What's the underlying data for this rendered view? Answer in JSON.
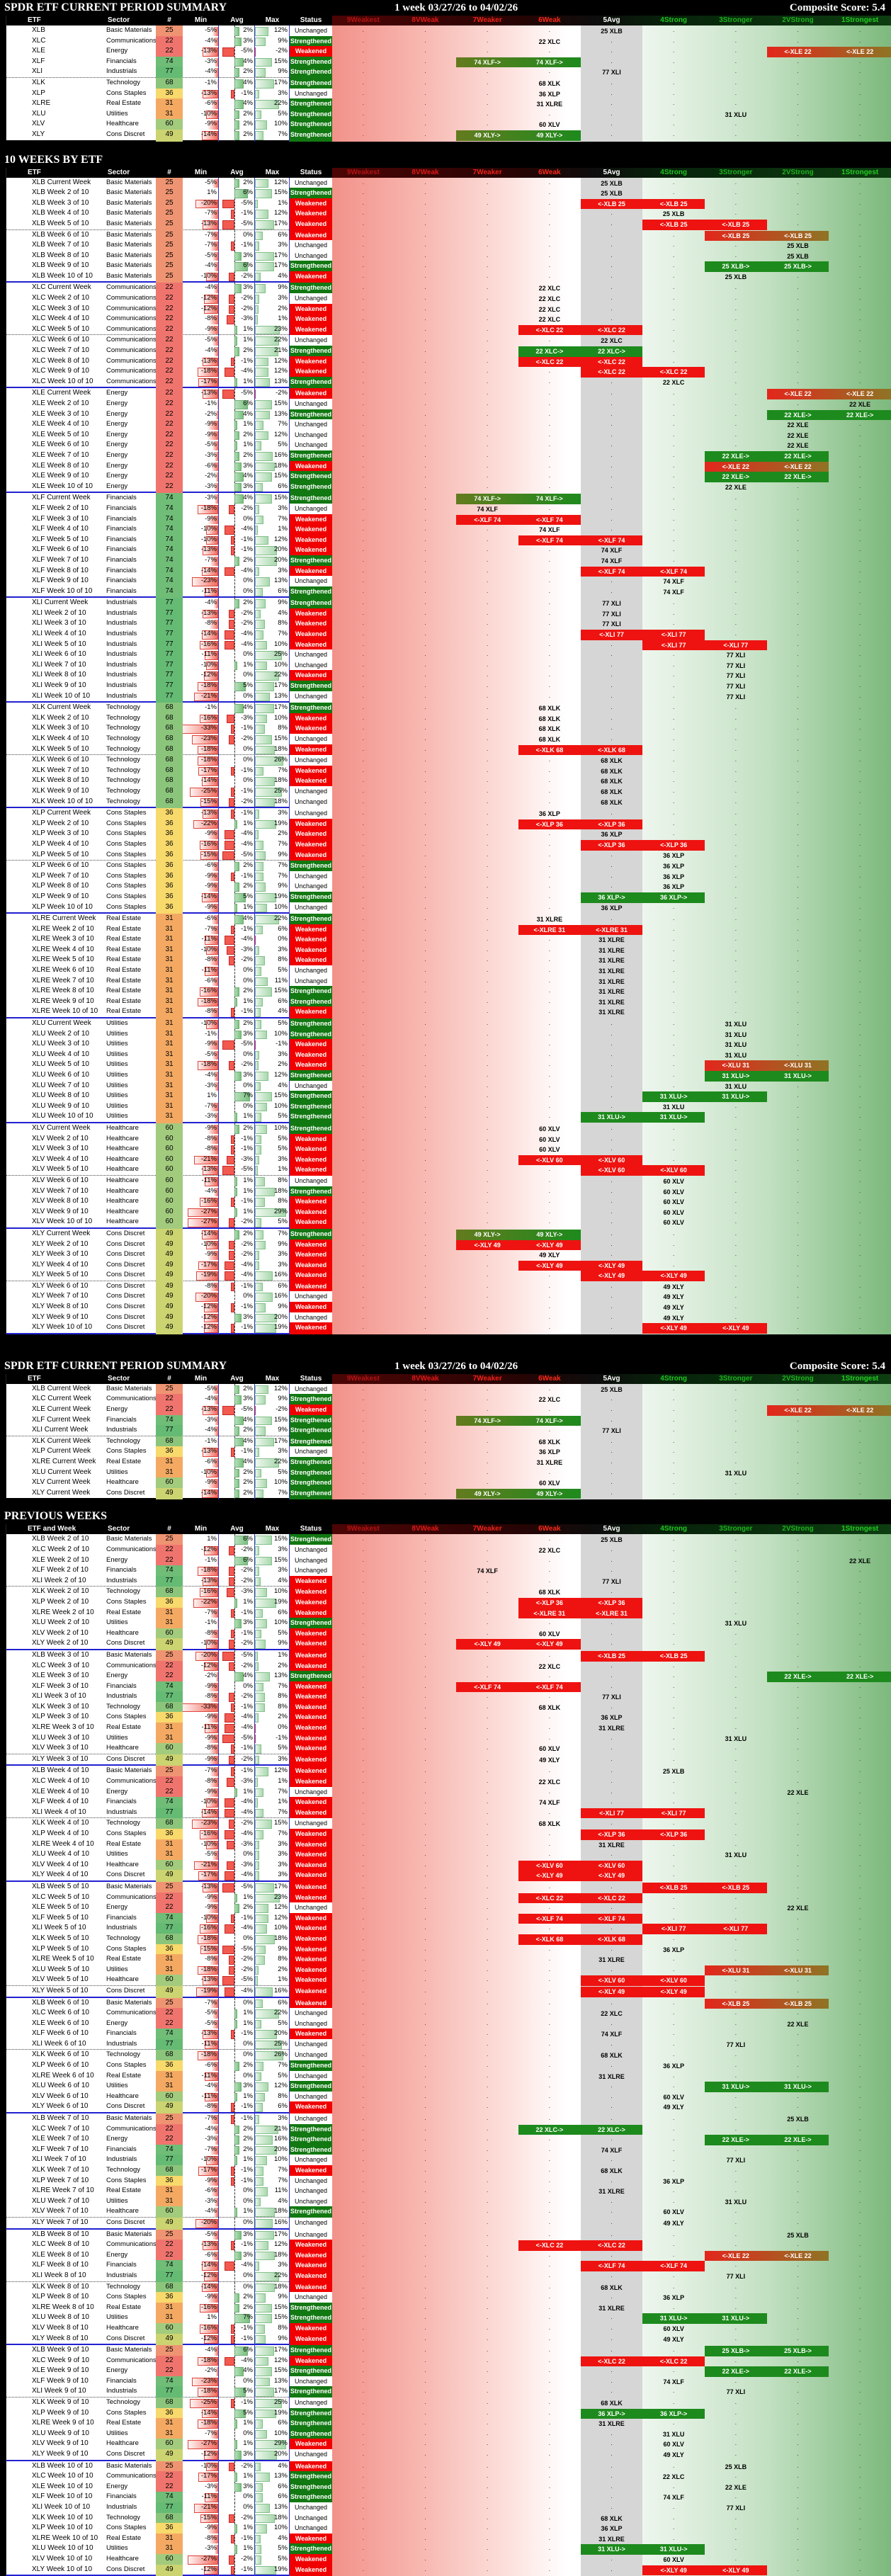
{
  "header": {
    "period": "1 week 03/27/26 to 04/02/26",
    "composite": "Composite Score: 5.4"
  },
  "sections": {
    "s1": {
      "title": "SPDR ETF CURRENT PERIOD SUMMARY",
      "first_col": "ETF"
    },
    "s2": {
      "title": "10 WEEKS BY ETF",
      "first_col": "ETF"
    },
    "s3": {
      "title": "SPDR ETF CURRENT PERIOD SUMMARY",
      "first_col": "ETF"
    },
    "s4": {
      "title": "PREVIOUS WEEKS",
      "first_col": "ETF and Week"
    }
  },
  "columns": {
    "left": [
      "ETF",
      "Sector",
      "#",
      "Min",
      "Avg",
      "Max",
      "Status"
    ],
    "rank": [
      "9Weakest",
      "8VWeak",
      "7Weaker",
      "6Weak",
      "5Avg",
      "4Strong",
      "3Stronger",
      "2VStrong",
      "1Strongest"
    ],
    "rank_header_colors": [
      "#b31414",
      "#e01818",
      "#f02218",
      "#ff2a1a",
      "#ffffff",
      "#20c520",
      "#1db31d",
      "#1db31d",
      "#22cc22"
    ]
  },
  "week_labels": [
    "Current Week",
    "Week 2 of 10",
    "Week 3 of 10",
    "Week 4 of 10",
    "Week 5 of 10",
    "Week 6 of 10",
    "Week 7 of 10",
    "Week 8 of 10",
    "Week 9 of 10",
    "Week 10 of 10"
  ],
  "status_names": {
    "U": "Unchanged",
    "S": "Strengthened",
    "W": "Weakened"
  },
  "status_colors": {
    "S": "#127812",
    "W": "#f00000",
    "U": "#ffffff"
  },
  "chip_colors": {
    "red": "#ee1310",
    "red_in_green_zone": "linear-gradient(90deg,#e3261c,#8f7424)",
    "green": "#1d8a1d",
    "green_in_red_zone": "linear-gradient(90deg,#637b1e,#1d8a1d)"
  },
  "etfs": [
    {
      "ticker": "XLB",
      "sector": "Basic Materials",
      "count": 25,
      "count_color": "#ef9472",
      "weeks": [
        [
          -5,
          2,
          12,
          "U",
          5,
          "p"
        ],
        [
          1,
          6,
          15,
          "S",
          5,
          "p"
        ],
        [
          -20,
          -5,
          1,
          "W",
          5,
          "l"
        ],
        [
          -7,
          -1,
          12,
          "W",
          6,
          "p"
        ],
        [
          -13,
          -5,
          17,
          "W",
          6,
          "l"
        ],
        [
          -7,
          0,
          6,
          "W",
          7,
          "l"
        ],
        [
          -7,
          -1,
          3,
          "U",
          8,
          "p"
        ],
        [
          -5,
          3,
          17,
          "U",
          8,
          "p"
        ],
        [
          -4,
          6,
          17,
          "S",
          7,
          "r"
        ],
        [
          -10,
          -2,
          4,
          "W",
          7,
          "p"
        ]
      ]
    },
    {
      "ticker": "XLC",
      "sector": "Communications",
      "count": 22,
      "count_color": "#f0746e",
      "weeks": [
        [
          -4,
          3,
          9,
          "S",
          4,
          "p"
        ],
        [
          -12,
          -2,
          3,
          "U",
          4,
          "p"
        ],
        [
          -12,
          -2,
          2,
          "W",
          4,
          "p"
        ],
        [
          -8,
          -3,
          1,
          "W",
          4,
          "p"
        ],
        [
          -9,
          1,
          23,
          "W",
          4,
          "l"
        ],
        [
          -5,
          1,
          22,
          "U",
          5,
          "p"
        ],
        [
          -4,
          2,
          21,
          "S",
          4,
          "r"
        ],
        [
          -13,
          -1,
          12,
          "W",
          4,
          "l"
        ],
        [
          -18,
          -4,
          12,
          "W",
          5,
          "l"
        ],
        [
          -17,
          1,
          13,
          "S",
          6,
          "p"
        ]
      ]
    },
    {
      "ticker": "XLE",
      "sector": "Energy",
      "count": 22,
      "count_color": "#f0746e",
      "weeks": [
        [
          -13,
          -5,
          -2,
          "W",
          8,
          "l"
        ],
        [
          -1,
          6,
          15,
          "U",
          9,
          "p"
        ],
        [
          -2,
          4,
          13,
          "S",
          8,
          "r"
        ],
        [
          -9,
          1,
          7,
          "U",
          8,
          "p"
        ],
        [
          -9,
          2,
          12,
          "U",
          8,
          "p"
        ],
        [
          -5,
          1,
          5,
          "U",
          8,
          "p"
        ],
        [
          -3,
          2,
          16,
          "S",
          7,
          "r"
        ],
        [
          -6,
          3,
          18,
          "W",
          7,
          "l"
        ],
        [
          -2,
          4,
          15,
          "S",
          7,
          "r"
        ],
        [
          -3,
          3,
          6,
          "S",
          7,
          "p"
        ]
      ]
    },
    {
      "ticker": "XLF",
      "sector": "Financials",
      "count": 74,
      "count_color": "#70bd78",
      "weeks": [
        [
          -3,
          4,
          15,
          "S",
          3,
          "r"
        ],
        [
          -18,
          -2,
          3,
          "U",
          3,
          "p"
        ],
        [
          -9,
          0,
          7,
          "W",
          3,
          "l"
        ],
        [
          -10,
          -4,
          1,
          "W",
          4,
          "p"
        ],
        [
          -10,
          -1,
          12,
          "W",
          4,
          "l"
        ],
        [
          -13,
          -1,
          20,
          "W",
          5,
          "p"
        ],
        [
          -7,
          2,
          20,
          "S",
          5,
          "p"
        ],
        [
          -14,
          -4,
          3,
          "W",
          5,
          "l"
        ],
        [
          -23,
          0,
          13,
          "U",
          6,
          "p"
        ],
        [
          -11,
          0,
          6,
          "S",
          6,
          "p"
        ]
      ]
    },
    {
      "ticker": "XLI",
      "sector": "Industrials",
      "count": 77,
      "count_color": "#65ba74",
      "weeks": [
        [
          -4,
          2,
          9,
          "S",
          5,
          "p"
        ],
        [
          -13,
          -2,
          4,
          "W",
          5,
          "p"
        ],
        [
          -8,
          -2,
          8,
          "W",
          5,
          "p"
        ],
        [
          -14,
          -4,
          7,
          "W",
          5,
          "l"
        ],
        [
          -16,
          -4,
          10,
          "W",
          6,
          "l"
        ],
        [
          -11,
          0,
          25,
          "U",
          7,
          "p"
        ],
        [
          -10,
          1,
          10,
          "U",
          7,
          "p"
        ],
        [
          -12,
          0,
          22,
          "W",
          7,
          "p"
        ],
        [
          -18,
          5,
          17,
          "S",
          7,
          "p"
        ],
        [
          -21,
          0,
          13,
          "U",
          7,
          "p"
        ]
      ]
    },
    {
      "ticker": "XLK",
      "sector": "Technology",
      "count": 68,
      "count_color": "#8bc57c",
      "weeks": [
        [
          -1,
          4,
          17,
          "S",
          4,
          "p"
        ],
        [
          -16,
          -3,
          10,
          "W",
          4,
          "p"
        ],
        [
          -33,
          -1,
          8,
          "W",
          4,
          "p"
        ],
        [
          -23,
          -2,
          15,
          "U",
          4,
          "p"
        ],
        [
          -18,
          0,
          18,
          "W",
          4,
          "l"
        ],
        [
          -18,
          0,
          26,
          "U",
          5,
          "p"
        ],
        [
          -17,
          -1,
          7,
          "W",
          5,
          "p"
        ],
        [
          -14,
          0,
          18,
          "W",
          5,
          "p"
        ],
        [
          -25,
          -1,
          25,
          "U",
          5,
          "p"
        ],
        [
          -15,
          -2,
          18,
          "U",
          5,
          "p"
        ]
      ]
    },
    {
      "ticker": "XLP",
      "sector": "Cons Staples",
      "count": 36,
      "count_color": "#f8d96c",
      "weeks": [
        [
          -13,
          -1,
          3,
          "U",
          4,
          "p"
        ],
        [
          -22,
          1,
          19,
          "W",
          4,
          "l"
        ],
        [
          -9,
          -4,
          2,
          "W",
          5,
          "p"
        ],
        [
          -16,
          -4,
          7,
          "W",
          5,
          "l"
        ],
        [
          -15,
          -5,
          9,
          "W",
          6,
          "p"
        ],
        [
          -6,
          2,
          7,
          "S",
          6,
          "p"
        ],
        [
          -9,
          -1,
          7,
          "U",
          6,
          "p"
        ],
        [
          -9,
          2,
          9,
          "U",
          6,
          "p"
        ],
        [
          -14,
          5,
          19,
          "S",
          5,
          "r"
        ],
        [
          -9,
          1,
          10,
          "U",
          5,
          "p"
        ]
      ]
    },
    {
      "ticker": "XLRE",
      "sector": "Real Estate",
      "count": 31,
      "count_color": "#f4a963",
      "weeks": [
        [
          -6,
          4,
          22,
          "S",
          4,
          "p"
        ],
        [
          -7,
          -1,
          6,
          "W",
          4,
          "l"
        ],
        [
          -11,
          -4,
          0,
          "W",
          5,
          "p"
        ],
        [
          -10,
          -3,
          3,
          "W",
          5,
          "p"
        ],
        [
          -8,
          -2,
          8,
          "W",
          5,
          "p"
        ],
        [
          -11,
          0,
          5,
          "U",
          5,
          "p"
        ],
        [
          -6,
          0,
          11,
          "U",
          5,
          "p"
        ],
        [
          -16,
          2,
          15,
          "S",
          5,
          "p"
        ],
        [
          -18,
          1,
          6,
          "S",
          5,
          "p"
        ],
        [
          -8,
          -1,
          4,
          "W",
          5,
          "p"
        ]
      ]
    },
    {
      "ticker": "XLU",
      "sector": "Utilities",
      "count": 31,
      "count_color": "#f4a963",
      "weeks": [
        [
          -10,
          2,
          5,
          "S",
          7,
          "p"
        ],
        [
          -1,
          3,
          10,
          "S",
          7,
          "p"
        ],
        [
          -9,
          -5,
          -1,
          "W",
          7,
          "p"
        ],
        [
          -5,
          0,
          3,
          "W",
          7,
          "p"
        ],
        [
          -18,
          -2,
          2,
          "W",
          7,
          "l"
        ],
        [
          -4,
          3,
          12,
          "S",
          7,
          "r"
        ],
        [
          -3,
          0,
          4,
          "U",
          7,
          "p"
        ],
        [
          1,
          7,
          15,
          "S",
          6,
          "r"
        ],
        [
          -7,
          0,
          10,
          "S",
          6,
          "p"
        ],
        [
          -3,
          1,
          5,
          "S",
          5,
          "r"
        ]
      ]
    },
    {
      "ticker": "XLV",
      "sector": "Healthcare",
      "count": 60,
      "count_color": "#a2cb7e",
      "weeks": [
        [
          -9,
          2,
          10,
          "S",
          4,
          "p"
        ],
        [
          -8,
          -1,
          5,
          "W",
          4,
          "p"
        ],
        [
          -8,
          -1,
          5,
          "W",
          4,
          "p"
        ],
        [
          -21,
          -3,
          3,
          "W",
          4,
          "l"
        ],
        [
          -13,
          -5,
          1,
          "W",
          5,
          "l"
        ],
        [
          -11,
          1,
          8,
          "U",
          6,
          "p"
        ],
        [
          -4,
          1,
          18,
          "S",
          6,
          "p"
        ],
        [
          -16,
          -1,
          8,
          "W",
          6,
          "p"
        ],
        [
          -27,
          1,
          29,
          "W",
          6,
          "p"
        ],
        [
          -27,
          -2,
          5,
          "W",
          6,
          "p"
        ]
      ]
    },
    {
      "ticker": "XLY",
      "sector": "Cons Discret",
      "count": 49,
      "count_color": "#ccd471",
      "weeks": [
        [
          -14,
          2,
          7,
          "S",
          3,
          "r"
        ],
        [
          -10,
          -2,
          9,
          "W",
          3,
          "l"
        ],
        [
          -9,
          -2,
          3,
          "W",
          4,
          "p"
        ],
        [
          -17,
          -4,
          3,
          "W",
          4,
          "l"
        ],
        [
          -19,
          -4,
          16,
          "W",
          5,
          "l"
        ],
        [
          -8,
          -1,
          6,
          "W",
          6,
          "p"
        ],
        [
          -20,
          0,
          16,
          "U",
          6,
          "p"
        ],
        [
          -12,
          -1,
          9,
          "W",
          6,
          "p"
        ],
        [
          -12,
          3,
          20,
          "U",
          6,
          "p"
        ],
        [
          -12,
          -1,
          19,
          "W",
          6,
          "l"
        ]
      ]
    }
  ]
}
